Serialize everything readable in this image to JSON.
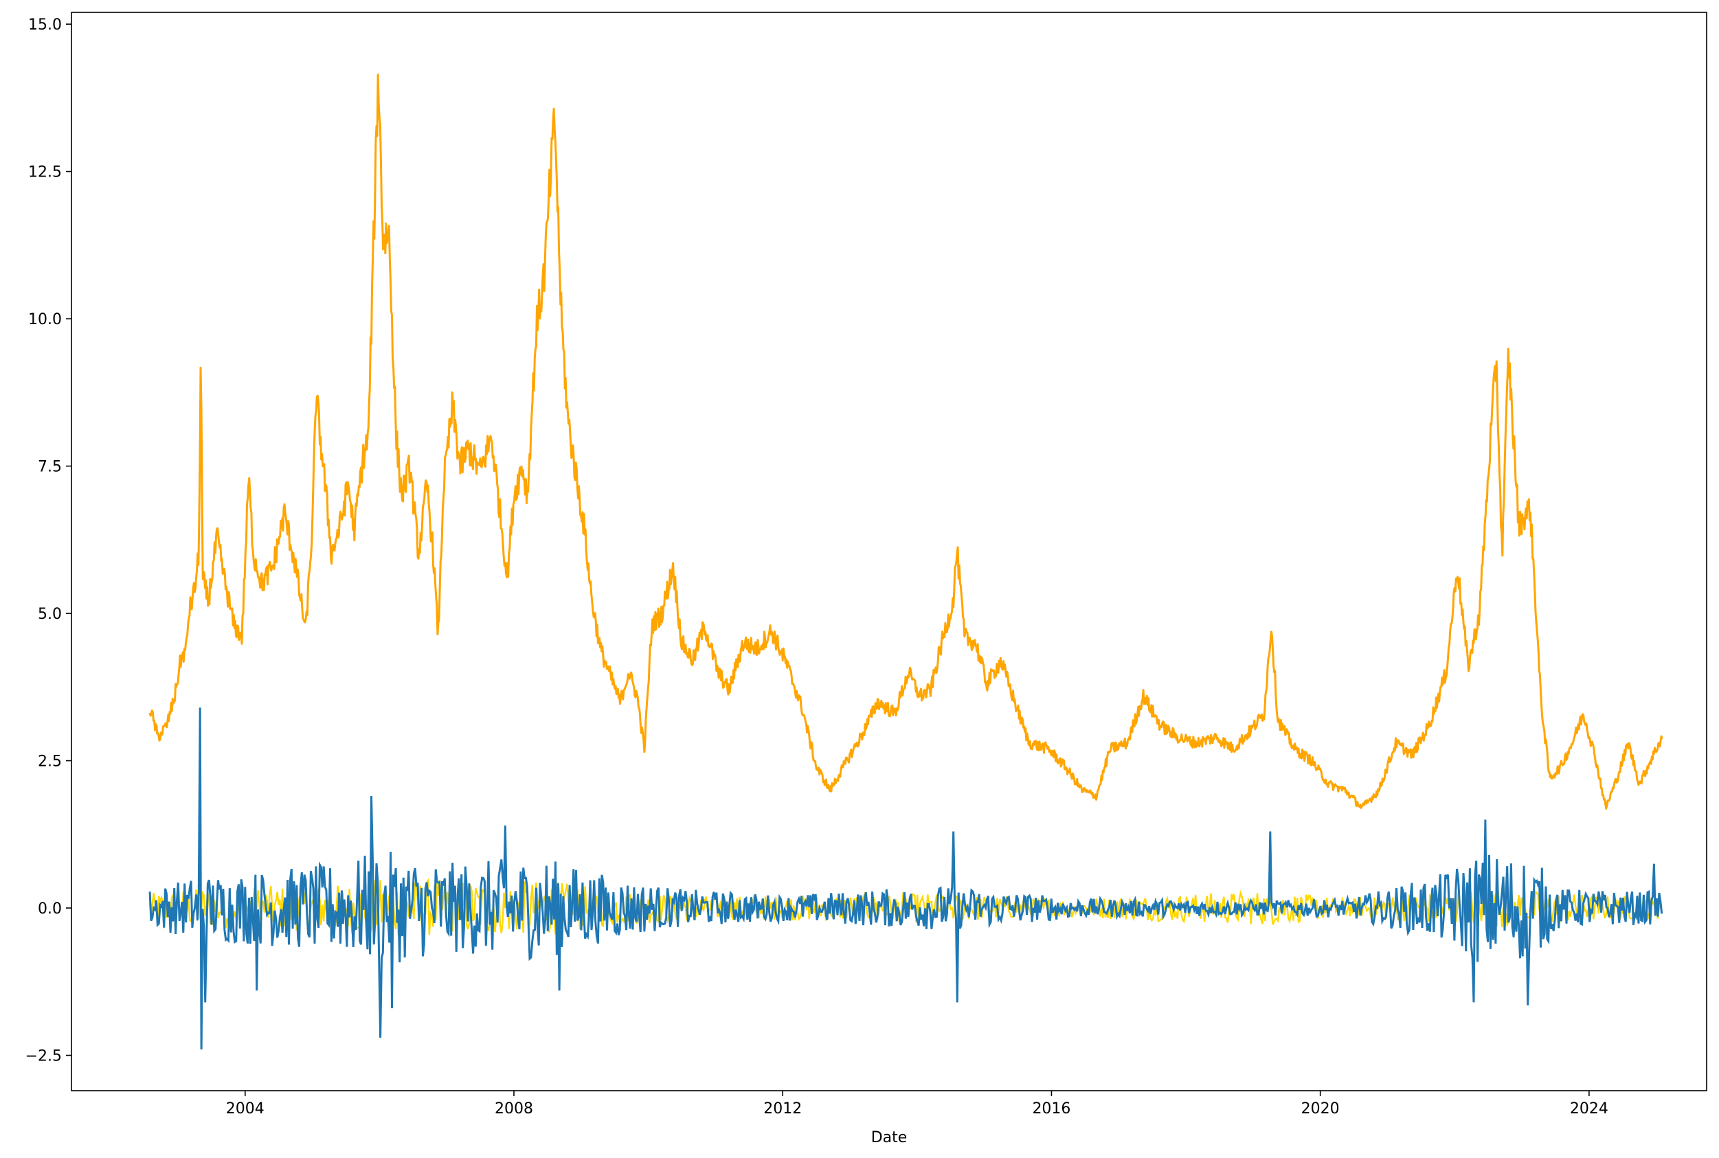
{
  "chart_data": {
    "type": "line",
    "title": "",
    "xlabel": "Date",
    "ylabel": "",
    "x_axis": {
      "type": "date",
      "range": [
        "2001-06-01",
        "2025-10-01"
      ],
      "ticks": [
        {
          "value": "2004-01-01",
          "label": "2004"
        },
        {
          "value": "2008-01-01",
          "label": "2008"
        },
        {
          "value": "2012-01-01",
          "label": "2012"
        },
        {
          "value": "2016-01-01",
          "label": "2016"
        },
        {
          "value": "2020-01-01",
          "label": "2020"
        },
        {
          "value": "2024-01-01",
          "label": "2024"
        }
      ]
    },
    "y_axis": {
      "range": [
        -3.1,
        15.2
      ],
      "ticks": [
        {
          "value": -2.5,
          "label": "−2.5"
        },
        {
          "value": 0.0,
          "label": "0.0"
        },
        {
          "value": 2.5,
          "label": "2.5"
        },
        {
          "value": 5.0,
          "label": "5.0"
        },
        {
          "value": 7.5,
          "label": "7.5"
        },
        {
          "value": 10.0,
          "label": "10.0"
        },
        {
          "value": 12.5,
          "label": "12.5"
        },
        {
          "value": 15.0,
          "label": "15.0"
        }
      ]
    },
    "grid": false,
    "legend": "none",
    "series": [
      {
        "color": "#FFA500",
        "points": [
          [
            "2002-08-01",
            3.4
          ],
          [
            "2002-09-15",
            2.9
          ],
          [
            "2002-11-01",
            3.1
          ],
          [
            "2002-12-15",
            3.6
          ],
          [
            "2003-01-15",
            4.2
          ],
          [
            "2003-02-15",
            4.4
          ],
          [
            "2003-03-01",
            5.0
          ],
          [
            "2003-04-01",
            5.4
          ],
          [
            "2003-04-25",
            6.0
          ],
          [
            "2003-05-05",
            9.6
          ],
          [
            "2003-05-15",
            5.6
          ],
          [
            "2003-06-15",
            5.2
          ],
          [
            "2003-08-01",
            6.3
          ],
          [
            "2003-09-15",
            5.5
          ],
          [
            "2003-11-01",
            4.8
          ],
          [
            "2003-12-15",
            4.6
          ],
          [
            "2004-01-20",
            7.3
          ],
          [
            "2004-02-15",
            6.0
          ],
          [
            "2004-04-01",
            5.5
          ],
          [
            "2004-06-01",
            5.8
          ],
          [
            "2004-08-01",
            6.7
          ],
          [
            "2004-10-01",
            5.8
          ],
          [
            "2004-11-25",
            4.7
          ],
          [
            "2005-01-01",
            6.5
          ],
          [
            "2005-01-20",
            8.7
          ],
          [
            "2005-03-01",
            7.5
          ],
          [
            "2005-04-15",
            6.0
          ],
          [
            "2005-06-01",
            6.5
          ],
          [
            "2005-07-15",
            7.2
          ],
          [
            "2005-08-15",
            6.4
          ],
          [
            "2005-10-01",
            7.6
          ],
          [
            "2005-11-01",
            8.0
          ],
          [
            "2005-12-01",
            11.5
          ],
          [
            "2005-12-25",
            14.2
          ],
          [
            "2006-01-20",
            11.3
          ],
          [
            "2006-02-20",
            11.5
          ],
          [
            "2006-04-01",
            8.0
          ],
          [
            "2006-05-01",
            7.0
          ],
          [
            "2006-06-15",
            7.5
          ],
          [
            "2006-08-01",
            6.0
          ],
          [
            "2006-09-15",
            7.2
          ],
          [
            "2006-10-20",
            6.0
          ],
          [
            "2006-11-15",
            4.6
          ],
          [
            "2006-12-15",
            7.2
          ],
          [
            "2007-02-01",
            8.5
          ],
          [
            "2007-03-15",
            7.5
          ],
          [
            "2007-05-01",
            7.8
          ],
          [
            "2007-07-01",
            7.4
          ],
          [
            "2007-09-01",
            8.0
          ],
          [
            "2007-10-15",
            6.8
          ],
          [
            "2007-11-25",
            5.6
          ],
          [
            "2008-01-01",
            7.0
          ],
          [
            "2008-02-15",
            7.5
          ],
          [
            "2008-03-15",
            7.0
          ],
          [
            "2008-05-01",
            9.8
          ],
          [
            "2008-06-15",
            10.8
          ],
          [
            "2008-07-20",
            12.5
          ],
          [
            "2008-08-10",
            13.4
          ],
          [
            "2008-09-15",
            10.0
          ],
          [
            "2008-10-20",
            8.3
          ],
          [
            "2008-12-01",
            7.4
          ],
          [
            "2009-01-15",
            6.5
          ],
          [
            "2009-03-01",
            5.2
          ],
          [
            "2009-04-15",
            4.4
          ],
          [
            "2009-06-01",
            4.0
          ],
          [
            "2009-08-01",
            3.5
          ],
          [
            "2009-09-15",
            4.0
          ],
          [
            "2009-11-01",
            3.6
          ],
          [
            "2009-12-10",
            2.7
          ],
          [
            "2010-01-20",
            4.8
          ],
          [
            "2010-03-15",
            5.0
          ],
          [
            "2010-05-15",
            5.8
          ],
          [
            "2010-07-01",
            4.5
          ],
          [
            "2010-09-01",
            4.2
          ],
          [
            "2010-11-01",
            4.8
          ],
          [
            "2011-01-15",
            4.0
          ],
          [
            "2011-03-15",
            3.7
          ],
          [
            "2011-06-01",
            4.5
          ],
          [
            "2011-08-15",
            4.4
          ],
          [
            "2011-11-01",
            4.7
          ],
          [
            "2012-01-15",
            4.2
          ],
          [
            "2012-04-15",
            3.4
          ],
          [
            "2012-07-01",
            2.4
          ],
          [
            "2012-09-15",
            2.0
          ],
          [
            "2012-12-15",
            2.5
          ],
          [
            "2013-03-01",
            2.9
          ],
          [
            "2013-06-01",
            3.5
          ],
          [
            "2013-09-01",
            3.3
          ],
          [
            "2013-11-15",
            4.0
          ],
          [
            "2014-01-15",
            3.6
          ],
          [
            "2014-03-15",
            3.7
          ],
          [
            "2014-05-15",
            4.5
          ],
          [
            "2014-07-15",
            5.2
          ],
          [
            "2014-08-05",
            6.1
          ],
          [
            "2014-09-15",
            4.6
          ],
          [
            "2014-11-15",
            4.5
          ],
          [
            "2015-01-15",
            3.8
          ],
          [
            "2015-04-01",
            4.2
          ],
          [
            "2015-06-15",
            3.5
          ],
          [
            "2015-09-01",
            2.8
          ],
          [
            "2015-12-15",
            2.7
          ],
          [
            "2016-03-15",
            2.4
          ],
          [
            "2016-06-15",
            2.0
          ],
          [
            "2016-09-01",
            1.9
          ],
          [
            "2016-11-15",
            2.7
          ],
          [
            "2017-02-15",
            2.8
          ],
          [
            "2017-05-15",
            3.6
          ],
          [
            "2017-08-15",
            3.1
          ],
          [
            "2017-11-15",
            2.9
          ],
          [
            "2018-03-01",
            2.8
          ],
          [
            "2018-06-15",
            2.9
          ],
          [
            "2018-09-15",
            2.7
          ],
          [
            "2018-12-15",
            3.0
          ],
          [
            "2019-03-01",
            3.3
          ],
          [
            "2019-04-10",
            4.8
          ],
          [
            "2019-05-15",
            3.2
          ],
          [
            "2019-08-15",
            2.7
          ],
          [
            "2019-11-15",
            2.5
          ],
          [
            "2020-02-15",
            2.1
          ],
          [
            "2020-05-15",
            2.0
          ],
          [
            "2020-08-15",
            1.7
          ],
          [
            "2020-11-15",
            2.0
          ],
          [
            "2021-02-15",
            2.8
          ],
          [
            "2021-05-15",
            2.6
          ],
          [
            "2021-08-15",
            3.1
          ],
          [
            "2021-11-15",
            4.0
          ],
          [
            "2022-01-15",
            5.8
          ],
          [
            "2022-03-15",
            4.1
          ],
          [
            "2022-05-15",
            5.0
          ],
          [
            "2022-07-15",
            8.0
          ],
          [
            "2022-08-15",
            9.3
          ],
          [
            "2022-09-15",
            6.0
          ],
          [
            "2022-10-20",
            9.4
          ],
          [
            "2022-12-15",
            6.5
          ],
          [
            "2023-02-15",
            6.8
          ],
          [
            "2023-04-15",
            3.5
          ],
          [
            "2023-06-01",
            2.2
          ],
          [
            "2023-08-01",
            2.4
          ],
          [
            "2023-10-01",
            2.8
          ],
          [
            "2023-12-01",
            3.3
          ],
          [
            "2024-02-01",
            2.6
          ],
          [
            "2024-04-01",
            1.7
          ],
          [
            "2024-06-01",
            2.2
          ],
          [
            "2024-08-01",
            2.8
          ],
          [
            "2024-10-01",
            2.1
          ],
          [
            "2024-12-15",
            2.6
          ],
          [
            "2025-02-01",
            2.9
          ]
        ]
      },
      {
        "color": "#FFD700",
        "amplitude_profile": [
          [
            "2002-08-01",
            0.25
          ],
          [
            "2003-06-01",
            0.35
          ],
          [
            "2005-06-01",
            0.4
          ],
          [
            "2006-01-01",
            0.5
          ],
          [
            "2008-09-01",
            0.45
          ],
          [
            "2009-06-01",
            0.3
          ],
          [
            "2011-01-01",
            0.2
          ],
          [
            "2014-06-01",
            0.25
          ],
          [
            "2016-01-01",
            0.15
          ],
          [
            "2019-04-01",
            0.3
          ],
          [
            "2020-06-01",
            0.15
          ],
          [
            "2022-06-01",
            0.35
          ],
          [
            "2024-06-01",
            0.2
          ],
          [
            "2025-02-01",
            0.2
          ]
        ]
      },
      {
        "color": "#1F77B4",
        "amplitude_profile": [
          [
            "2002-08-01",
            0.3
          ],
          [
            "2003-04-20",
            0.5
          ],
          [
            "2004-06-01",
            0.6
          ],
          [
            "2005-06-01",
            0.7
          ],
          [
            "2006-01-01",
            0.9
          ],
          [
            "2007-01-01",
            0.7
          ],
          [
            "2008-06-01",
            0.8
          ],
          [
            "2009-06-01",
            0.5
          ],
          [
            "2010-06-01",
            0.3
          ],
          [
            "2012-01-01",
            0.2
          ],
          [
            "2014-06-01",
            0.35
          ],
          [
            "2016-06-01",
            0.15
          ],
          [
            "2018-06-01",
            0.12
          ],
          [
            "2019-06-01",
            0.12
          ],
          [
            "2020-06-01",
            0.15
          ],
          [
            "2021-10-01",
            0.5
          ],
          [
            "2022-06-01",
            0.9
          ],
          [
            "2023-03-01",
            0.8
          ],
          [
            "2023-08-01",
            0.3
          ],
          [
            "2025-02-01",
            0.25
          ]
        ],
        "spikes": [
          [
            "2003-05-01",
            3.4
          ],
          [
            "2003-05-10",
            -2.4
          ],
          [
            "2003-06-01",
            -1.6
          ],
          [
            "2005-11-20",
            1.9
          ],
          [
            "2006-01-05",
            -2.2
          ],
          [
            "2006-03-10",
            -1.7
          ],
          [
            "2004-03-01",
            -1.4
          ],
          [
            "2007-11-15",
            1.4
          ],
          [
            "2008-09-01",
            -1.4
          ],
          [
            "2014-07-20",
            1.3
          ],
          [
            "2014-08-10",
            -1.6
          ],
          [
            "2019-04-05",
            1.3
          ],
          [
            "2022-06-15",
            1.5
          ],
          [
            "2022-04-15",
            -1.6
          ],
          [
            "2023-02-01",
            -1.65
          ],
          [
            "2024-12-20",
            0.75
          ]
        ]
      }
    ]
  }
}
